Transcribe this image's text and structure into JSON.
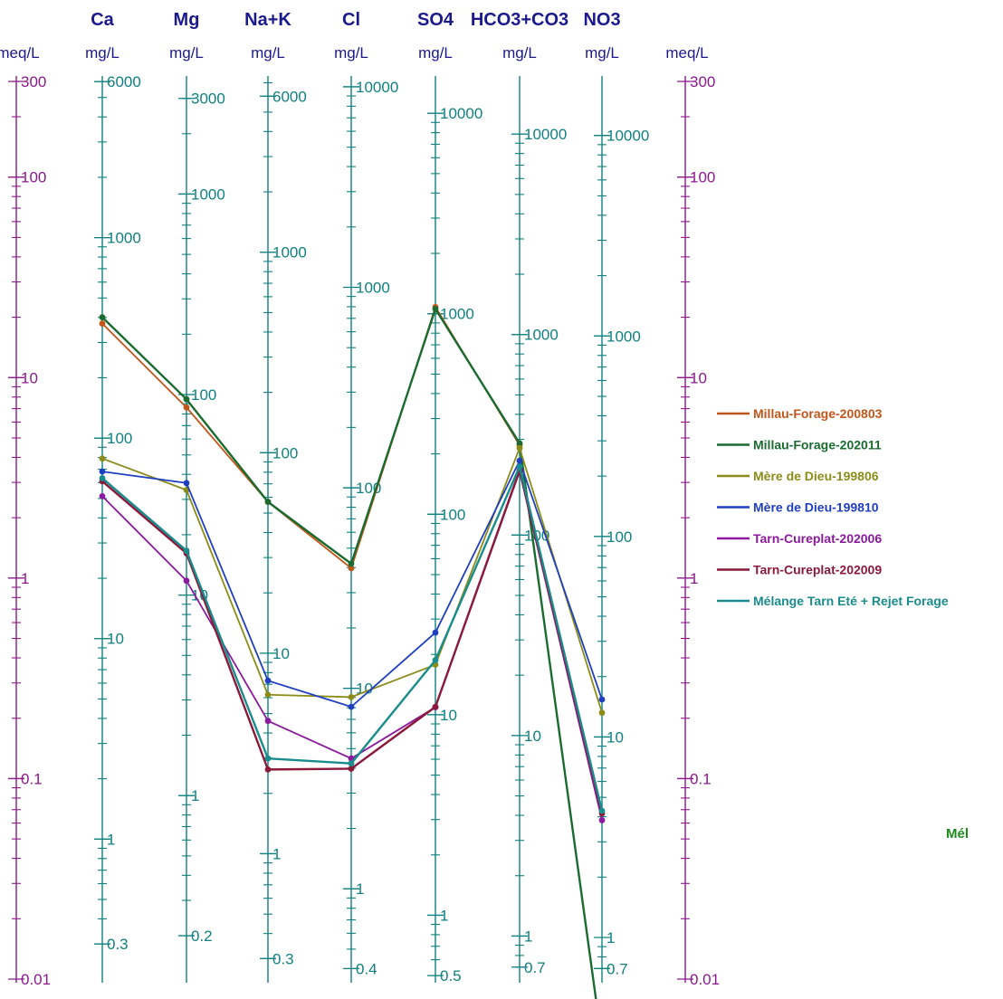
{
  "chart_data": {
    "type": "line",
    "title": "",
    "subtitle": "",
    "scale": "log",
    "columns": [
      {
        "key": "meq_left",
        "unit": "meq/L",
        "color": "#8b1a8b",
        "ticks": [
          {
            "label": "300",
            "value": 300
          },
          {
            "label": "100",
            "value": 100
          },
          {
            "label": "10",
            "value": 10
          },
          {
            "label": "1",
            "value": 1
          },
          {
            "label": "0.1",
            "value": 0.1
          },
          {
            "label": "0.01",
            "value": 0.01
          }
        ]
      },
      {
        "key": "Ca",
        "ion": "Ca",
        "unit": "mg/L",
        "color": "#108080",
        "ticks": [
          {
            "label": "6000",
            "value": 6000
          },
          {
            "label": "1000",
            "value": 1000
          },
          {
            "label": "100",
            "value": 100
          },
          {
            "label": "10",
            "value": 10
          },
          {
            "label": "1",
            "value": 1
          },
          {
            "label": "0.3",
            "value": 0.3
          }
        ]
      },
      {
        "key": "Mg",
        "ion": "Mg",
        "unit": "mg/L",
        "color": "#108080",
        "ticks": [
          {
            "label": "3000",
            "value": 3000
          },
          {
            "label": "1000",
            "value": 1000
          },
          {
            "label": "100",
            "value": 100
          },
          {
            "label": "10",
            "value": 10
          },
          {
            "label": "1",
            "value": 1
          },
          {
            "label": "0.2",
            "value": 0.2
          }
        ]
      },
      {
        "key": "NaK",
        "ion": "Na+K",
        "unit": "mg/L",
        "color": "#108080",
        "ticks": [
          {
            "label": "6000",
            "value": 6000
          },
          {
            "label": "1000",
            "value": 1000
          },
          {
            "label": "100",
            "value": 100
          },
          {
            "label": "10",
            "value": 10
          },
          {
            "label": "1",
            "value": 1
          },
          {
            "label": "0.3",
            "value": 0.3
          }
        ]
      },
      {
        "key": "Cl",
        "ion": "Cl",
        "unit": "mg/L",
        "color": "#108080",
        "ticks": [
          {
            "label": "10000",
            "value": 10000
          },
          {
            "label": "1000",
            "value": 1000
          },
          {
            "label": "100",
            "value": 100
          },
          {
            "label": "10",
            "value": 10
          },
          {
            "label": "1",
            "value": 1
          },
          {
            "label": "0.4",
            "value": 0.4
          }
        ]
      },
      {
        "key": "SO4",
        "ion": "SO4",
        "unit": "mg/L",
        "color": "#108080",
        "ticks": [
          {
            "label": "10000",
            "value": 10000
          },
          {
            "label": "1000",
            "value": 1000
          },
          {
            "label": "100",
            "value": 100
          },
          {
            "label": "10",
            "value": 10
          },
          {
            "label": "1",
            "value": 1
          },
          {
            "label": "0.5",
            "value": 0.5
          }
        ]
      },
      {
        "key": "HCO3",
        "ion": "HCO3+CO3",
        "unit": "mg/L",
        "color": "#108080",
        "ticks": [
          {
            "label": "10000",
            "value": 10000
          },
          {
            "label": "1000",
            "value": 1000
          },
          {
            "label": "100",
            "value": 100
          },
          {
            "label": "10",
            "value": 10
          },
          {
            "label": "1",
            "value": 1
          },
          {
            "label": "0.7",
            "value": 0.7
          }
        ]
      },
      {
        "key": "NO3",
        "ion": "NO3",
        "unit": "mg/L",
        "color": "#108080",
        "ticks": [
          {
            "label": "10000",
            "value": 10000
          },
          {
            "label": "1000",
            "value": 1000
          },
          {
            "label": "100",
            "value": 100
          },
          {
            "label": "10",
            "value": 10
          },
          {
            "label": "1",
            "value": 1
          },
          {
            "label": "0.7",
            "value": 0.7
          }
        ]
      },
      {
        "key": "meq_right",
        "unit": "meq/L",
        "color": "#8b1a8b",
        "ticks": [
          {
            "label": "300",
            "value": 300
          },
          {
            "label": "100",
            "value": 100
          },
          {
            "label": "10",
            "value": 10
          },
          {
            "label": "1",
            "value": 1
          },
          {
            "label": "0.1",
            "value": 0.1
          },
          {
            "label": "0.01",
            "value": 0.01
          }
        ]
      }
    ],
    "meq_range": [
      0.01,
      300
    ],
    "ions": [
      "Ca",
      "Mg",
      "Na+K",
      "Cl",
      "SO4",
      "HCO3+CO3",
      "NO3"
    ],
    "series": [
      {
        "name": "Millau-Forage-200803",
        "color": "#c0561a",
        "meq": [
          18.6,
          7.1,
          2.4,
          1.12,
          22.5,
          4.6,
          null
        ]
      },
      {
        "name": "Millau-Forage-202011",
        "color": "#1a6b30",
        "meq": [
          20.0,
          7.8,
          2.4,
          1.18,
          22.0,
          4.7,
          0.0048
        ]
      },
      {
        "name": "Mère de Dieu-199806",
        "color": "#8c8c1a",
        "meq": [
          3.95,
          2.75,
          0.262,
          0.255,
          0.37,
          4.45,
          0.213
        ]
      },
      {
        "name": "Mère de Dieu-199810",
        "color": "#1f3fbf",
        "meq": [
          3.4,
          2.98,
          0.308,
          0.228,
          0.535,
          3.85,
          0.248
        ]
      },
      {
        "name": "Tarn-Cureplat-202006",
        "color": "#8b1a9e",
        "meq": [
          2.56,
          0.97,
          0.194,
          0.126,
          0.227,
          3.4,
          0.062
        ]
      },
      {
        "name": "Tarn-Cureplat-202009",
        "color": "#8b1a3a",
        "meq": [
          3.04,
          1.33,
          0.111,
          0.112,
          0.228,
          3.45,
          0.067
        ]
      },
      {
        "name": "Mélange Tarn Eté + Rejet Forage",
        "color": "#1a8c8c",
        "meq": [
          3.15,
          1.37,
          0.126,
          0.119,
          0.39,
          3.6,
          0.069
        ]
      }
    ],
    "legend_position": "right",
    "grid": false,
    "annotation": "Mél"
  }
}
